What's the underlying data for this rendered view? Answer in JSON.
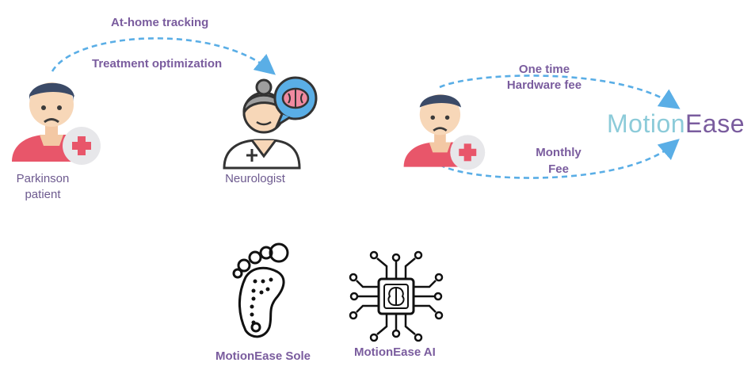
{
  "left_flow": {
    "label_top": "At-home tracking",
    "label_mid": "Treatment optimization",
    "patient_label_line1": "Parkinson",
    "patient_label_line2": "patient",
    "neurologist_label": "Neurologist"
  },
  "right_flow": {
    "top_label_line1": "One time",
    "top_label_line2": "Hardware fee",
    "bottom_label_line1": "Monthly",
    "bottom_label_line2": "Fee",
    "brand_part1": "Motion",
    "brand_part2": "Ease"
  },
  "products": {
    "sole_label": "MotionEase Sole",
    "ai_label": "MotionEase AI"
  },
  "colors": {
    "arrow": "#5aaee6",
    "label_purple": "#7a5c9e",
    "brand_light": "#8ccbd9",
    "brand_dark": "#7a5c9e"
  }
}
